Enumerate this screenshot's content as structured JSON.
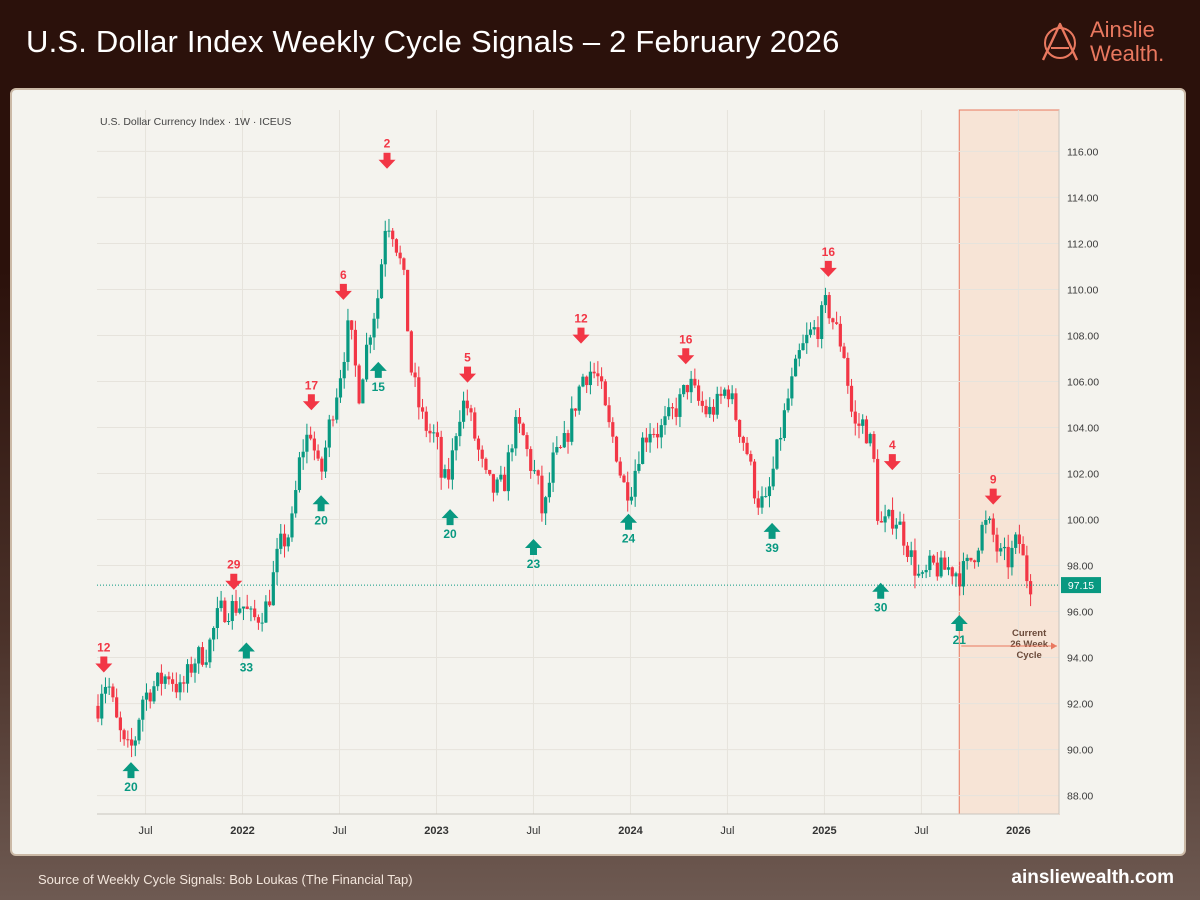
{
  "header": {
    "title": "U.S. Dollar Index Weekly Cycle Signals – 2 February 2026",
    "logo_line1": "Ainslie",
    "logo_line2": "Wealth."
  },
  "footer": {
    "source": "Source of Weekly Cycle Signals: Bob Loukas (The Financial Tap)",
    "url": "ainsliewealth.com"
  },
  "colors": {
    "up": "#089981",
    "down": "#f23645",
    "accent": "#e9785f",
    "cycle_fill": "#f7e4d6"
  },
  "chart_data": {
    "type": "candlestick",
    "title": "U.S. Dollar Currency Index · 1W · ICEUS",
    "x_range": [
      2021.255,
      2026.07
    ],
    "ylim": [
      87.2,
      117.8
    ],
    "y_ticks": [
      88.0,
      90.0,
      92.0,
      94.0,
      96.0,
      98.0,
      100.0,
      102.0,
      104.0,
      106.0,
      108.0,
      110.0,
      112.0,
      114.0,
      116.0
    ],
    "x_ticks": [
      {
        "label": "Jul",
        "t": 2021.5
      },
      {
        "label": "2022",
        "t": 2022.0
      },
      {
        "label": "Jul",
        "t": 2022.5
      },
      {
        "label": "2023",
        "t": 2023.0
      },
      {
        "label": "Jul",
        "t": 2023.5
      },
      {
        "label": "2024",
        "t": 2024.0
      },
      {
        "label": "Jul",
        "t": 2024.5
      },
      {
        "label": "2025",
        "t": 2025.0
      },
      {
        "label": "Jul",
        "t": 2025.5
      },
      {
        "label": "2026",
        "t": 2026.0
      }
    ],
    "current_price": 97.15,
    "current_price_label": "97.15",
    "price_path": [
      [
        2021.255,
        91.9
      ],
      [
        2021.28,
        93.0
      ],
      [
        2021.31,
        92.8
      ],
      [
        2021.35,
        91.2
      ],
      [
        2021.39,
        90.1
      ],
      [
        2021.42,
        89.9
      ],
      [
        2021.45,
        90.6
      ],
      [
        2021.48,
        92.2
      ],
      [
        2021.55,
        92.8
      ],
      [
        2021.62,
        93.3
      ],
      [
        2021.68,
        92.5
      ],
      [
        2021.75,
        93.9
      ],
      [
        2021.82,
        94.3
      ],
      [
        2021.88,
        96.0
      ],
      [
        2021.95,
        96.2
      ],
      [
        2022.0,
        96.3
      ],
      [
        2022.05,
        95.6
      ],
      [
        2022.08,
        95.8
      ],
      [
        2022.13,
        96.3
      ],
      [
        2022.19,
        98.8
      ],
      [
        2022.25,
        99.5
      ],
      [
        2022.3,
        102.9
      ],
      [
        2022.35,
        103.9
      ],
      [
        2022.4,
        101.7
      ],
      [
        2022.45,
        104.2
      ],
      [
        2022.5,
        106.2
      ],
      [
        2022.55,
        108.5
      ],
      [
        2022.6,
        105.5
      ],
      [
        2022.65,
        108.0
      ],
      [
        2022.7,
        109.8
      ],
      [
        2022.74,
        113.2
      ],
      [
        2022.78,
        112.5
      ],
      [
        2022.83,
        110.5
      ],
      [
        2022.87,
        106.5
      ],
      [
        2022.92,
        104.5
      ],
      [
        2022.96,
        103.8
      ],
      [
        2023.0,
        103.5
      ],
      [
        2023.03,
        101.5
      ],
      [
        2023.07,
        102.0
      ],
      [
        2023.11,
        104.5
      ],
      [
        2023.15,
        105.2
      ],
      [
        2023.2,
        103.5
      ],
      [
        2023.25,
        101.8
      ],
      [
        2023.3,
        101.2
      ],
      [
        2023.35,
        101.6
      ],
      [
        2023.4,
        104.0
      ],
      [
        2023.44,
        103.8
      ],
      [
        2023.48,
        102.5
      ],
      [
        2023.52,
        101.7
      ],
      [
        2023.55,
        100.0
      ],
      [
        2023.6,
        102.5
      ],
      [
        2023.65,
        103.0
      ],
      [
        2023.7,
        104.5
      ],
      [
        2023.75,
        106.2
      ],
      [
        2023.8,
        106.5
      ],
      [
        2023.84,
        106.0
      ],
      [
        2023.88,
        104.2
      ],
      [
        2023.92,
        103.3
      ],
      [
        2023.96,
        101.5
      ],
      [
        2024.0,
        101.3
      ],
      [
        2024.05,
        103.2
      ],
      [
        2024.1,
        104.0
      ],
      [
        2024.15,
        103.8
      ],
      [
        2024.2,
        104.4
      ],
      [
        2024.25,
        105.0
      ],
      [
        2024.3,
        106.0
      ],
      [
        2024.35,
        105.1
      ],
      [
        2024.4,
        104.6
      ],
      [
        2024.45,
        105.0
      ],
      [
        2024.5,
        105.8
      ],
      [
        2024.55,
        104.3
      ],
      [
        2024.6,
        103.0
      ],
      [
        2024.65,
        100.9
      ],
      [
        2024.7,
        100.6
      ],
      [
        2024.74,
        102.3
      ],
      [
        2024.78,
        104.0
      ],
      [
        2024.82,
        105.5
      ],
      [
        2024.87,
        107.1
      ],
      [
        2024.92,
        108.0
      ],
      [
        2024.97,
        108.4
      ],
      [
        2025.01,
        109.4
      ],
      [
        2025.05,
        108.5
      ],
      [
        2025.1,
        107.3
      ],
      [
        2025.15,
        104.0
      ],
      [
        2025.2,
        104.2
      ],
      [
        2025.25,
        103.0
      ],
      [
        2025.28,
        99.7
      ],
      [
        2025.32,
        99.8
      ],
      [
        2025.36,
        100.2
      ],
      [
        2025.4,
        99.5
      ],
      [
        2025.45,
        98.3
      ],
      [
        2025.5,
        97.2
      ],
      [
        2025.55,
        98.0
      ],
      [
        2025.6,
        97.8
      ],
      [
        2025.65,
        97.9
      ],
      [
        2025.7,
        97.6
      ],
      [
        2025.74,
        98.0
      ],
      [
        2025.78,
        98.7
      ],
      [
        2025.82,
        99.8
      ],
      [
        2025.86,
        99.6
      ],
      [
        2025.9,
        98.4
      ],
      [
        2025.95,
        98.2
      ],
      [
        2026.0,
        99.2
      ],
      [
        2026.04,
        97.6
      ],
      [
        2026.07,
        97.15
      ]
    ],
    "signals": [
      {
        "kind": "top",
        "label": "12",
        "t": 2021.285,
        "price": 93.0
      },
      {
        "kind": "bottom",
        "label": "20",
        "t": 2021.425,
        "price": 89.8
      },
      {
        "kind": "top",
        "label": "29",
        "t": 2021.955,
        "price": 96.6
      },
      {
        "kind": "bottom",
        "label": "33",
        "t": 2022.02,
        "price": 95.0
      },
      {
        "kind": "top",
        "label": "17",
        "t": 2022.355,
        "price": 104.4
      },
      {
        "kind": "bottom",
        "label": "20",
        "t": 2022.405,
        "price": 101.4
      },
      {
        "kind": "top",
        "label": "6",
        "t": 2022.52,
        "price": 109.2
      },
      {
        "kind": "bottom",
        "label": "15",
        "t": 2022.7,
        "price": 107.2
      },
      {
        "kind": "top",
        "label": "2",
        "t": 2022.745,
        "price": 114.9
      },
      {
        "kind": "top",
        "label": "5",
        "t": 2023.16,
        "price": 105.6
      },
      {
        "kind": "bottom",
        "label": "20",
        "t": 2023.07,
        "price": 100.8
      },
      {
        "kind": "top",
        "label": "12",
        "t": 2023.745,
        "price": 107.3
      },
      {
        "kind": "bottom",
        "label": "23",
        "t": 2023.5,
        "price": 99.5
      },
      {
        "kind": "top",
        "label": "16",
        "t": 2024.285,
        "price": 106.4
      },
      {
        "kind": "bottom",
        "label": "24",
        "t": 2023.99,
        "price": 100.6
      },
      {
        "kind": "bottom",
        "label": "39",
        "t": 2024.73,
        "price": 100.2
      },
      {
        "kind": "top",
        "label": "16",
        "t": 2025.02,
        "price": 110.2
      },
      {
        "kind": "top",
        "label": "4",
        "t": 2025.35,
        "price": 101.8
      },
      {
        "kind": "bottom",
        "label": "30",
        "t": 2025.29,
        "price": 97.6
      },
      {
        "kind": "top",
        "label": "9",
        "t": 2025.87,
        "price": 100.3
      },
      {
        "kind": "bottom",
        "label": "21",
        "t": 2025.695,
        "price": 96.2
      }
    ],
    "cycle_band": {
      "t_start": 2025.695,
      "t_end": 2026.2
    },
    "cycle_annotation": [
      "Current",
      "26 Week",
      "Cycle"
    ]
  }
}
